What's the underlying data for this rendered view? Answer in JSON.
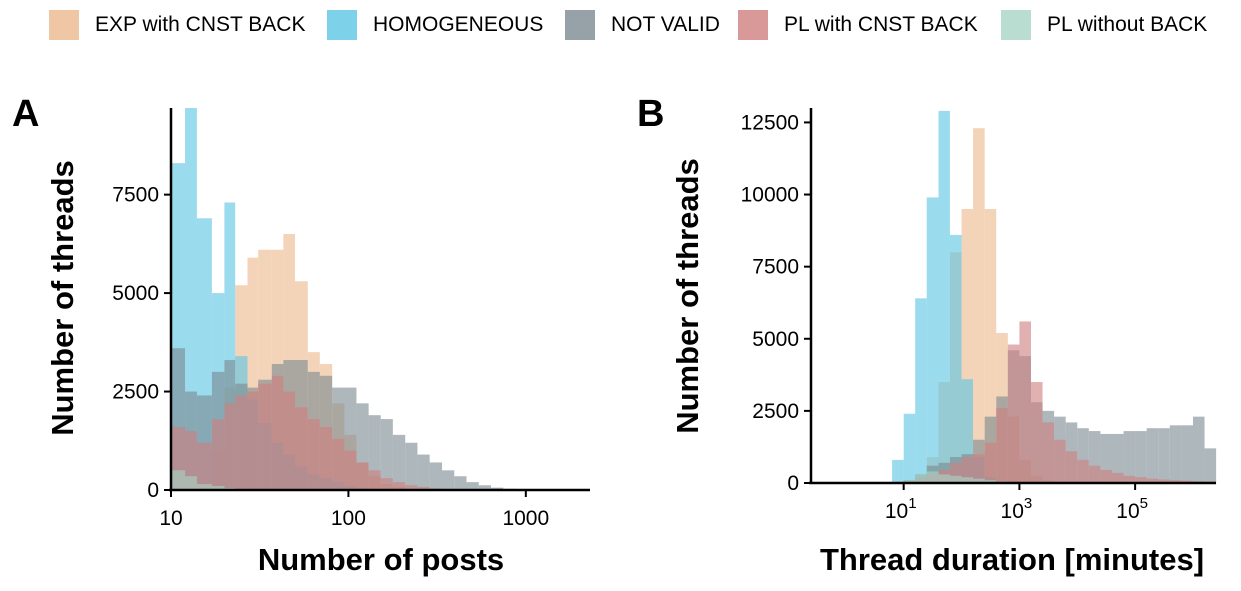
{
  "legend": [
    {
      "label": "EXP with CNST BACK",
      "color": "#ecb98e"
    },
    {
      "label": "HOMOGENEOUS",
      "color": "#5cc5e4"
    },
    {
      "label": "NOT VALID",
      "color": "#7d8b92"
    },
    {
      "label": "PL with CNST BACK",
      "color": "#cf7f7f"
    },
    {
      "label": "PL without BACK",
      "color": "#a8d4c4"
    }
  ],
  "chart_data": [
    {
      "type": "bar",
      "panel_label": "A",
      "title": "",
      "xlabel": "Number of posts",
      "ylabel": "Number of threads",
      "x_scale": "log",
      "xlim": [
        10,
        2300
      ],
      "ylim": [
        0,
        9700
      ],
      "grid": false,
      "legend_placement": "top",
      "x_ticks": [
        {
          "value": 10,
          "label": "10"
        },
        {
          "value": 100,
          "label": "100"
        },
        {
          "value": 1000,
          "label": "1000"
        }
      ],
      "y_ticks": [
        {
          "value": 0,
          "label": "0"
        },
        {
          "value": 2500,
          "label": "2500"
        },
        {
          "value": 5000,
          "label": "5000"
        },
        {
          "value": 7500,
          "label": "7500"
        }
      ],
      "bin_edges": [
        10,
        12,
        14,
        17,
        20,
        23,
        27,
        31,
        37,
        43,
        50,
        59,
        69,
        81,
        95,
        111,
        130,
        152,
        178,
        209,
        245,
        287,
        337,
        395,
        463,
        543,
        636,
        746,
        875,
        1026,
        1203,
        1410
      ],
      "series": [
        {
          "name": "EXP with CNST BACK",
          "values": [
            200,
            150,
            150,
            1000,
            2600,
            5200,
            5900,
            6100,
            6100,
            6500,
            5300,
            3500,
            3200,
            2200,
            1400,
            700,
            350,
            150,
            80,
            30,
            10,
            0,
            0,
            0,
            0,
            0,
            0,
            0,
            0,
            0,
            0
          ]
        },
        {
          "name": "HOMOGENEOUS",
          "values": [
            8300,
            9700,
            6900,
            5000,
            7300,
            3400,
            2300,
            1700,
            1200,
            900,
            600,
            400,
            300,
            200,
            100,
            50,
            20,
            0,
            0,
            0,
            0,
            0,
            0,
            0,
            0,
            0,
            0,
            0,
            0,
            0,
            0
          ]
        },
        {
          "name": "NOT VALID",
          "values": [
            3600,
            2500,
            2400,
            3000,
            3300,
            2700,
            2600,
            2800,
            3200,
            3300,
            3300,
            3000,
            2900,
            2600,
            2600,
            2200,
            1900,
            1800,
            1400,
            1200,
            900,
            700,
            500,
            350,
            200,
            120,
            60,
            30,
            15,
            5,
            0
          ]
        },
        {
          "name": "PL with CNST BACK",
          "values": [
            1600,
            1500,
            1200,
            1800,
            2200,
            2400,
            2500,
            2700,
            2900,
            2500,
            2100,
            1800,
            1600,
            1300,
            1000,
            700,
            500,
            300,
            200,
            120,
            80,
            40,
            20,
            10,
            0,
            0,
            0,
            0,
            0,
            0,
            0
          ]
        },
        {
          "name": "PL without BACK",
          "values": [
            500,
            350,
            150,
            100,
            50,
            30,
            20,
            10,
            5,
            0,
            0,
            0,
            0,
            0,
            0,
            0,
            0,
            0,
            0,
            0,
            0,
            0,
            0,
            0,
            0,
            0,
            0,
            0,
            0,
            0,
            0
          ]
        }
      ]
    },
    {
      "type": "bar",
      "panel_label": "B",
      "title": "",
      "xlabel": "Thread duration [minutes]",
      "ylabel": "Number of threads",
      "x_scale": "log",
      "xlim": [
        0.25,
        2500000
      ],
      "ylim": [
        0,
        13000
      ],
      "grid": false,
      "legend_placement": "top",
      "x_ticks": [
        {
          "value": 10,
          "base": "10",
          "exp": "1"
        },
        {
          "value": 1000,
          "base": "10",
          "exp": "3"
        },
        {
          "value": 100000,
          "base": "10",
          "exp": "5"
        }
      ],
      "y_ticks": [
        {
          "value": 0,
          "label": "0"
        },
        {
          "value": 2500,
          "label": "2500"
        },
        {
          "value": 5000,
          "label": "5000"
        },
        {
          "value": 7500,
          "label": "7500"
        },
        {
          "value": 10000,
          "label": "10000"
        },
        {
          "value": 12500,
          "label": "12500"
        }
      ],
      "bin_edges": [
        1,
        1.6,
        2.5,
        4,
        6.3,
        10,
        15.8,
        25,
        40,
        63,
        100,
        158,
        251,
        398,
        631,
        1000,
        1585,
        2512,
        3981,
        6310,
        10000,
        15849,
        25119,
        39811,
        63096,
        100000,
        158489,
        251189,
        398107,
        630957,
        1000000,
        1584893,
        2511886
      ],
      "series": [
        {
          "name": "EXP with CNST BACK",
          "values": [
            0,
            0,
            0,
            0,
            0,
            50,
            200,
            900,
            3500,
            8000,
            9500,
            12300,
            9500,
            5200,
            2300,
            800,
            250,
            80,
            30,
            10,
            0,
            0,
            0,
            0,
            0,
            0,
            0,
            0,
            0,
            0,
            0,
            0
          ]
        },
        {
          "name": "HOMOGENEOUS",
          "values": [
            0,
            0,
            0,
            0,
            800,
            2400,
            6400,
            9900,
            12900,
            8600,
            3600,
            900,
            200,
            50,
            0,
            0,
            0,
            0,
            0,
            0,
            0,
            0,
            0,
            0,
            0,
            0,
            0,
            0,
            0,
            0,
            0,
            0
          ]
        },
        {
          "name": "NOT VALID",
          "values": [
            0,
            0,
            0,
            0,
            0,
            100,
            300,
            600,
            700,
            900,
            1000,
            1500,
            2300,
            3000,
            4600,
            4400,
            2800,
            2500,
            2300,
            2100,
            1900,
            1800,
            1700,
            1700,
            1800,
            1800,
            1900,
            1900,
            2000,
            2000,
            2300,
            1200
          ]
        },
        {
          "name": "PL with CNST BACK",
          "values": [
            0,
            0,
            0,
            0,
            0,
            50,
            150,
            300,
            450,
            700,
            900,
            1000,
            1400,
            2600,
            4800,
            5600,
            3500,
            2100,
            1500,
            1100,
            800,
            600,
            450,
            350,
            250,
            200,
            150,
            120,
            100,
            80,
            60,
            50
          ]
        },
        {
          "name": "PL without BACK",
          "values": [
            0,
            0,
            0,
            0,
            0,
            100,
            300,
            400,
            300,
            250,
            200,
            150,
            100,
            50,
            20,
            0,
            0,
            0,
            0,
            0,
            0,
            0,
            0,
            0,
            0,
            0,
            0,
            0,
            0,
            0,
            0,
            0
          ]
        }
      ]
    }
  ]
}
